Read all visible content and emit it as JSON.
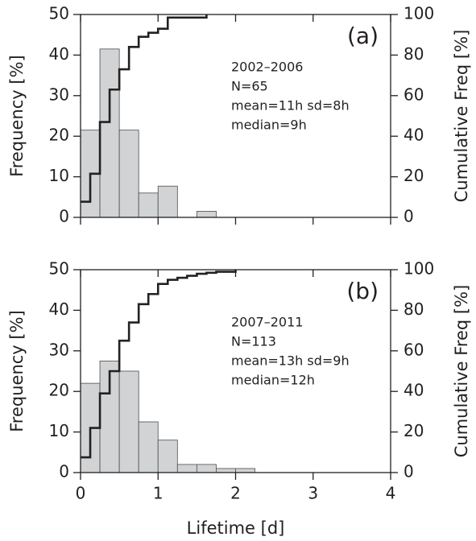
{
  "chart_data": [
    {
      "type": "histogram",
      "panel_label": "(a)",
      "bins": [
        0,
        0.25,
        0.5,
        0.75,
        1,
        1.25,
        1.5,
        1.75,
        2,
        2.25,
        2.5,
        2.75,
        3,
        3.25,
        3.5,
        3.75,
        4
      ],
      "values": [
        21.5,
        41.5,
        21.5,
        6,
        7.7,
        0,
        1.5,
        0,
        0,
        0,
        0,
        0,
        0,
        0,
        0,
        0
      ],
      "color": "#d1d3d4",
      "cumulative": {
        "axis": "y2",
        "color": "#222222",
        "x": [
          0,
          0.125,
          0.25,
          0.375,
          0.5,
          0.625,
          0.75,
          0.875,
          1,
          1.125,
          1.625
        ],
        "values": [
          7.7,
          21.5,
          47,
          63,
          73,
          84,
          89,
          91,
          93,
          98.5,
          100
        ]
      },
      "annotations": [
        "2002–2006",
        "N=65",
        "mean=11h sd=8h",
        "median=9h"
      ],
      "ylabel": "Frequency [%]",
      "y2label": "Cumulative Freq [%]",
      "xlim": [
        0,
        4
      ],
      "xticks": [
        0,
        1,
        2,
        3,
        4
      ],
      "show_xtick_labels": false,
      "ylim": [
        0,
        50
      ],
      "yticks": [
        0,
        10,
        20,
        30,
        40,
        50
      ],
      "y2lim": [
        0,
        100
      ],
      "y2ticks": [
        0,
        20,
        40,
        60,
        80,
        100
      ]
    },
    {
      "type": "histogram",
      "panel_label": "(b)",
      "bins": [
        0,
        0.25,
        0.5,
        0.75,
        1,
        1.25,
        1.5,
        1.75,
        2,
        2.25,
        2.5,
        2.75,
        3,
        3.25,
        3.5,
        3.75,
        4
      ],
      "values": [
        22,
        27.5,
        25,
        12.5,
        8,
        2,
        2,
        1,
        1,
        0,
        0,
        0,
        0,
        0,
        0,
        0
      ],
      "color": "#d1d3d4",
      "cumulative": {
        "axis": "y2",
        "color": "#222222",
        "x": [
          0,
          0.125,
          0.25,
          0.375,
          0.5,
          0.625,
          0.75,
          0.875,
          1,
          1.125,
          1.25,
          1.375,
          1.5,
          1.625,
          1.75,
          2
        ],
        "values": [
          7.5,
          22,
          39,
          50,
          65,
          74,
          83,
          88,
          93,
          95,
          96,
          97,
          98,
          98.5,
          99,
          100
        ]
      },
      "annotations": [
        "2007–2011",
        "N=113",
        "mean=13h sd=9h",
        "median=12h"
      ],
      "ylabel": "Frequency [%]",
      "y2label": "Cumulative Freq [%]",
      "xlabel": "Lifetime [d]",
      "xlim": [
        0,
        4
      ],
      "xticks": [
        0,
        1,
        2,
        3,
        4
      ],
      "show_xtick_labels": true,
      "ylim": [
        0,
        50
      ],
      "yticks": [
        0,
        10,
        20,
        30,
        40,
        50
      ],
      "y2lim": [
        0,
        100
      ],
      "y2ticks": [
        0,
        20,
        40,
        60,
        80,
        100
      ]
    }
  ]
}
